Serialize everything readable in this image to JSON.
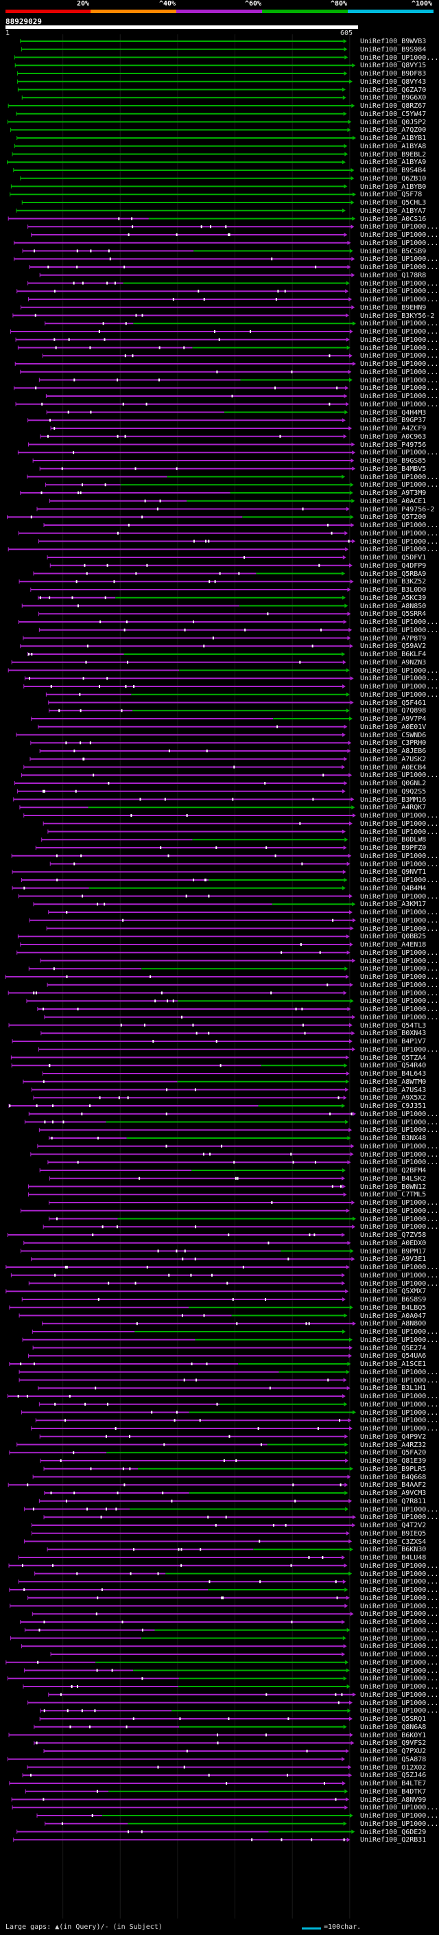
{
  "legend": {
    "percent_labels": [
      "20%",
      "^40%",
      "^60%",
      "^80%",
      "^100%"
    ],
    "colors": [
      "#e60000",
      "#ff8800",
      "#aa22cc",
      "#00b000",
      "#00bbdd"
    ]
  },
  "query": {
    "id": "88929029",
    "start": "1",
    "end": "605"
  },
  "footer": {
    "large_gaps": "Large gaps: ▲(in Query)/- (in Subject)",
    "scale": "=100char."
  },
  "chart_data": {
    "type": "alignment-overview",
    "query_length": 605,
    "identity_bins": [
      "<20%",
      "20-40%",
      "40-60%",
      "60-80%",
      "80-100%"
    ],
    "hits": [
      "UniRef100_B9WVB3",
      "UniRef100_B9S984",
      "UniRef100_UP1000...",
      "UniRef100_Q8VY15",
      "UniRef100_B9DF83",
      "UniRef100_Q8VY43",
      "UniRef100_Q6ZA70",
      "UniRef100_B9G6X0",
      "UniRef100_Q8RZ67",
      "UniRef100_C5YW47",
      "UniRef100_Q0J5P2",
      "UniRef100_A7QZ00",
      "UniRef100_A1BYB1",
      "UniRef100_A1BYA8",
      "UniRef100_B9EBL2",
      "UniRef100_A1BYA9",
      "UniRef100_B9S4B4",
      "UniRef100_Q6ZB10",
      "UniRef100_A1BYB0",
      "UniRef100_Q5F78",
      "UniRef100_Q5CHL3",
      "UniRef100_A1BYA7",
      "UniRef100_A0CS16",
      "UniRef100_UP1000...",
      "UniRef100_UP1000...",
      "UniRef100_UP1000...",
      "UniRef100_B5CSB9",
      "UniRef100_UP1000...",
      "UniRef100_UP1000...",
      "UniRef100_Q178R8",
      "UniRef100_UP1000...",
      "UniRef100_UP1000...",
      "UniRef100_UP1000...",
      "UniRef100_B9EHN9",
      "UniRef100_B3KY56-2",
      "UniRef100_UP1000...",
      "UniRef100_UP1000...",
      "UniRef100_UP1000...",
      "UniRef100_UP1000...",
      "UniRef100_UP1000...",
      "UniRef100_UP1000...",
      "UniRef100_UP1000...",
      "UniRef100_UP1000...",
      "UniRef100_UP1000...",
      "UniRef100_UP1000...",
      "UniRef100_UP1000...",
      "UniRef100_Q4H4M3",
      "UniRef100_B9GP37",
      "UniRef100_A4ZCF9",
      "UniRef100_A0C963",
      "UniRef100_P49756",
      "UniRef100_UP1000...",
      "UniRef100_B9GS85",
      "UniRef100_B4MBV5",
      "UniRef100_UP1000...",
      "UniRef100_UP1000...",
      "UniRef100_A9T3M9",
      "UniRef100_A0ACE1",
      "UniRef100_P49756-2",
      "UniRef100_Q5T200",
      "UniRef100_UP1000...",
      "UniRef100_UP1000...",
      "UniRef100_UP1000...",
      "UniRef100_UP1000...",
      "UniRef100_Q5DFV1",
      "UniRef100_Q4DFP9",
      "UniRef100_Q5RBA9",
      "UniRef100_B3KZ52",
      "UniRef100_B3L0D0",
      "UniRef100_A5KC39",
      "UniRef100_A8N850",
      "UniRef100_Q5SRR4",
      "UniRef100_UP1000...",
      "UniRef100_UP1000...",
      "UniRef100_A7P8T9",
      "UniRef100_Q59AV2",
      "UniRef100_B6KLF4",
      "UniRef100_A9NZN3",
      "UniRef100_UP1000...",
      "UniRef100_UP1000...",
      "UniRef100_UP1000...",
      "UniRef100_UP1000...",
      "UniRef100_Q5F461",
      "UniRef100_Q7Q898",
      "UniRef100_A9V7P4",
      "UniRef100_A0E01V",
      "UniRef100_C5WND6",
      "UniRef100_C3PRH0",
      "UniRef100_A8JEB6",
      "UniRef100_A7USK2",
      "UniRef100_A0ECB4",
      "UniRef100_UP1000...",
      "UniRef100_Q0GNL2",
      "UniRef100_Q9Q2S5",
      "UniRef100_B3MM16",
      "UniRef100_A4RQK7",
      "UniRef100_UP1000...",
      "UniRef100_UP1000...",
      "UniRef100_UP1000...",
      "UniRef100_B0DLW8",
      "UniRef100_B9PFZ0",
      "UniRef100_UP1000...",
      "UniRef100_UP1000...",
      "UniRef100_Q9NVT1",
      "UniRef100_UP1000...",
      "UniRef100_Q4B4M4",
      "UniRef100_UP1000...",
      "UniRef100_A3KM17",
      "UniRef100_UP1000...",
      "UniRef100_UP1000...",
      "UniRef100_UP1000...",
      "UniRef100_Q0BB25",
      "UniRef100_A4EN18",
      "UniRef100_UP1000...",
      "UniRef100_UP1000...",
      "UniRef100_UP1000...",
      "UniRef100_UP1000...",
      "UniRef100_UP1000...",
      "UniRef100_UP1000...",
      "UniRef100_UP1000...",
      "UniRef100_UP1000...",
      "UniRef100_UP1000...",
      "UniRef100_Q54TL3",
      "UniRef100_B0XN43",
      "UniRef100_B4P1V7",
      "UniRef100_UP1000...",
      "UniRef100_Q5TZA4",
      "UniRef100_Q54R40",
      "UniRef100_B4L643",
      "UniRef100_A8WTM0",
      "UniRef100_A7US43",
      "UniRef100_A9X5X2",
      "UniRef100_C9J351",
      "UniRef100_UP1000...",
      "UniRef100_UP1000...",
      "UniRef100_UP1000...",
      "UniRef100_B3NX48",
      "UniRef100_UP1000...",
      "UniRef100_UP1000...",
      "UniRef100_UP1000...",
      "UniRef100_Q2BFM4",
      "UniRef100_B4LSK2",
      "UniRef100_B0WN12",
      "UniRef100_C7TML5",
      "UniRef100_UP1000...",
      "UniRef100_UP1000...",
      "UniRef100_UP1000...",
      "UniRef100_UP1000...",
      "UniRef100_Q7ZV58",
      "UniRef100_A0EDX0",
      "UniRef100_B9PM17",
      "UniRef100_A9V3E1",
      "UniRef100_UP1000...",
      "UniRef100_UP1000...",
      "UniRef100_UP1000...",
      "UniRef100_Q5XMX7",
      "UniRef100_B6S8S9",
      "UniRef100_B4LBQ5",
      "UniRef100_A0A047",
      "UniRef100_A8N800",
      "UniRef100_UP1000...",
      "UniRef100_UP1000...",
      "UniRef100_Q5E274",
      "UniRef100_Q54UA6",
      "UniRef100_A1SCE1",
      "UniRef100_UP1000...",
      "UniRef100_UP1000...",
      "UniRef100_B3L1H1",
      "UniRef100_UP1000...",
      "UniRef100_UP1000...",
      "UniRef100_UP1000...",
      "UniRef100_UP1000...",
      "UniRef100_UP1000...",
      "UniRef100_Q4P9V2",
      "UniRef100_A4RZ32",
      "UniRef100_Q5FA20",
      "UniRef100_Q81E39",
      "UniRef100_B9PLR5",
      "UniRef100_B4Q668",
      "UniRef100_B4AAF2",
      "UniRef100_A9VCM3",
      "UniRef100_Q7R811",
      "UniRef100_UP1000...",
      "UniRef100_UP1000...",
      "UniRef100_Q4T2V2",
      "UniRef100_B9IEQ5",
      "UniRef100_C3ZXS4",
      "UniRef100_B6KN30",
      "UniRef100_B4LU48",
      "UniRef100_UP1000...",
      "UniRef100_UP1000...",
      "UniRef100_UP1000...",
      "UniRef100_UP1000...",
      "UniRef100_UP1000...",
      "UniRef100_UP1000...",
      "UniRef100_UP1000...",
      "UniRef100_UP1000...",
      "UniRef100_UP1000...",
      "UniRef100_UP1000...",
      "UniRef100_UP1000...",
      "UniRef100_UP1000...",
      "UniRef100_UP1000...",
      "UniRef100_UP1000...",
      "UniRef100_UP1000...",
      "UniRef100_UP1000...",
      "UniRef100_UP1000...",
      "UniRef100_UP1000...",
      "UniRef100_UP1000...",
      "UniRef100_Q5SRQ1",
      "UniRef100_Q8N6A8",
      "UniRef100_B6K0Y1",
      "UniRef100_Q9VFS2",
      "UniRef100_Q7PXU2",
      "UniRef100_Q5A878",
      "UniRef100_O12X02",
      "UniRef100_Q5ZJ46",
      "UniRef100_B4LTE7",
      "UniRef100_B4DTK7",
      "UniRef100_A8NV99",
      "UniRef100_UP1000...",
      "UniRef100_UP1000...",
      "UniRef100_UP1000...",
      "UniRef100_Q6DE29",
      "UniRef100_Q2RB31"
    ]
  }
}
